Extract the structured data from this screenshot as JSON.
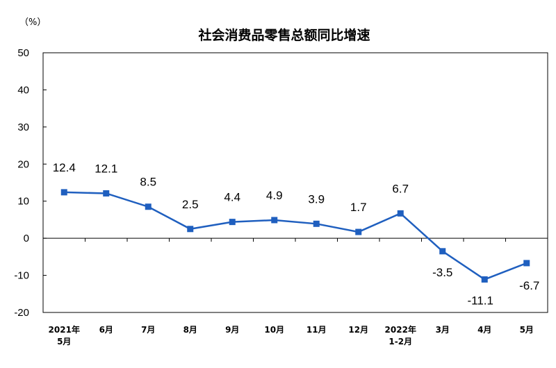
{
  "chart_data": {
    "type": "line",
    "title": "社会消费品零售总额同比增速",
    "ylabel": "（%）",
    "xlabel": "",
    "ylim": [
      -20,
      50
    ],
    "yticks": [
      50,
      40,
      30,
      20,
      10,
      0,
      -10,
      -20
    ],
    "grid": false,
    "legend": "none",
    "line_color": "#1f5fbf",
    "categories": [
      [
        "2021年",
        "5月"
      ],
      [
        "6月"
      ],
      [
        "7月"
      ],
      [
        "8月"
      ],
      [
        "9月"
      ],
      [
        "10月"
      ],
      [
        "11月"
      ],
      [
        "12月"
      ],
      [
        "2022年",
        "1-2月"
      ],
      [
        "3月"
      ],
      [
        "4月"
      ],
      [
        "5月"
      ]
    ],
    "values": [
      12.4,
      12.1,
      8.5,
      2.5,
      4.4,
      4.9,
      3.9,
      1.7,
      6.7,
      -3.5,
      -11.1,
      -6.7
    ],
    "value_labels": [
      "12.4",
      "12.1",
      "8.5",
      "2.5",
      "4.4",
      "4.9",
      "3.9",
      "1.7",
      "6.7",
      "-3.5",
      "-11.1",
      "-6.7"
    ]
  }
}
